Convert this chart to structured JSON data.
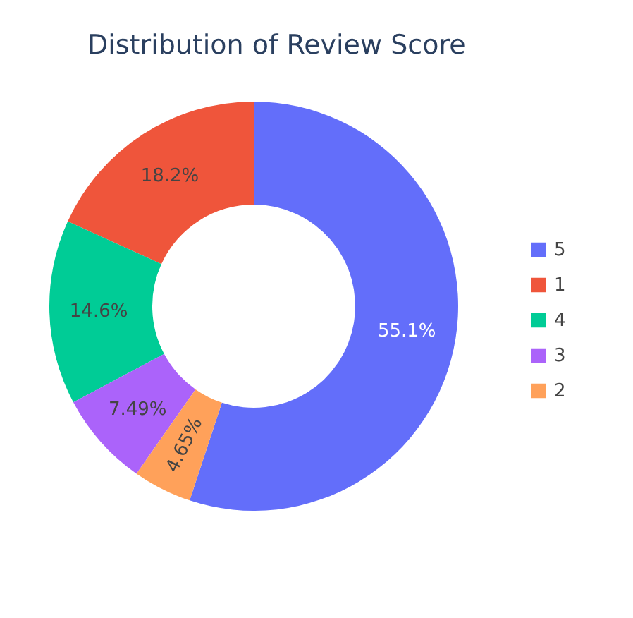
{
  "chart_data": {
    "type": "donut",
    "title": "Distribution of Review Score",
    "categories": [
      "5",
      "1",
      "4",
      "3",
      "2"
    ],
    "values": [
      55.1,
      18.2,
      14.6,
      7.49,
      4.65
    ],
    "value_labels": [
      "55.1%",
      "18.2%",
      "14.6%",
      "7.49%",
      "4.65%"
    ],
    "colors": [
      "#636efa",
      "#ef553b",
      "#00cc96",
      "#ab63fa",
      "#ffa15a"
    ],
    "legend": "right"
  }
}
